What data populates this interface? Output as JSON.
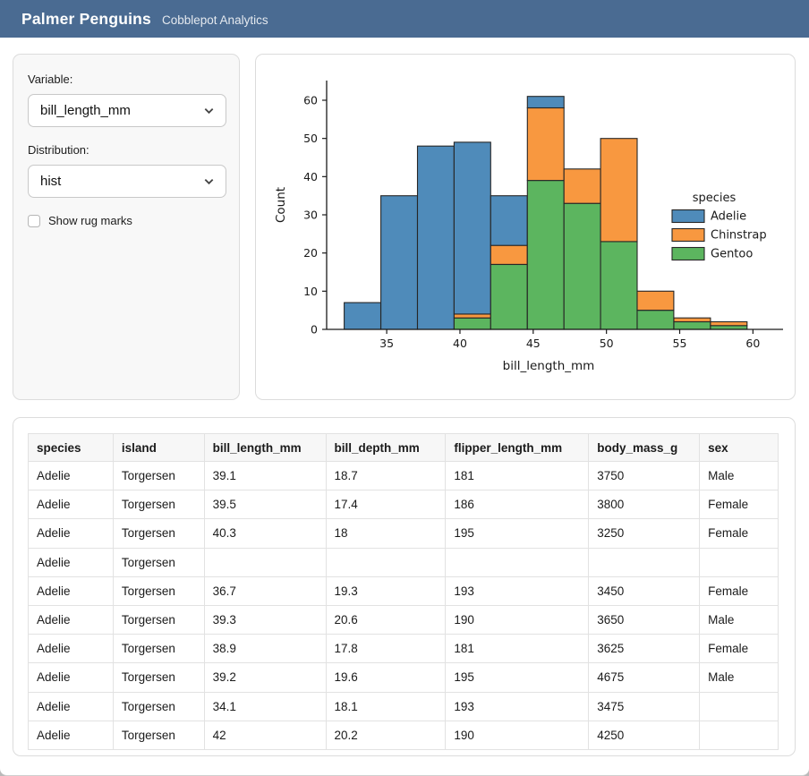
{
  "header": {
    "title": "Palmer Penguins",
    "subtitle": "Cobblepot Analytics"
  },
  "sidebar": {
    "variable_label": "Variable:",
    "variable_value": "bill_length_mm",
    "distribution_label": "Distribution:",
    "distribution_value": "hist",
    "rug_checkbox_label": "Show rug marks",
    "rug_checked": false
  },
  "chart_data": {
    "type": "bar",
    "subtype": "stacked-histogram",
    "title": "",
    "xlabel": "bill_length_mm",
    "ylabel": "Count",
    "legend_title": "species",
    "legend_position": "center-right",
    "grid": false,
    "bin_edges": [
      32.1,
      34.6,
      37.1,
      39.6,
      42.1,
      44.6,
      47.1,
      49.6,
      52.1,
      54.6,
      57.1,
      59.6
    ],
    "series": [
      {
        "name": "Adelie",
        "color": "#4f8bba",
        "values": [
          7,
          35,
          48,
          45,
          13,
          3,
          0,
          0,
          0,
          0,
          0
        ]
      },
      {
        "name": "Chinstrap",
        "color": "#f89840",
        "values": [
          0,
          0,
          0,
          1,
          5,
          19,
          9,
          27,
          5,
          1,
          1
        ]
      },
      {
        "name": "Gentoo",
        "color": "#5cb55f",
        "values": [
          0,
          0,
          0,
          3,
          17,
          39,
          33,
          23,
          5,
          2,
          1
        ]
      }
    ],
    "stack_order_bottom_to_top": [
      "Gentoo",
      "Chinstrap",
      "Adelie"
    ],
    "bin_totals": [
      7,
      35,
      48,
      49,
      35,
      61,
      42,
      50,
      10,
      3,
      2
    ],
    "xticks": [
      35,
      40,
      45,
      50,
      55,
      60
    ],
    "yticks": [
      0,
      10,
      20,
      30,
      40,
      50,
      60
    ],
    "xlim": [
      30.9,
      61.2
    ],
    "ylim": [
      0,
      64
    ],
    "bar_edge_color": "#262626"
  },
  "table": {
    "columns": [
      "species",
      "island",
      "bill_length_mm",
      "bill_depth_mm",
      "flipper_length_mm",
      "body_mass_g",
      "sex"
    ],
    "rows": [
      [
        "Adelie",
        "Torgersen",
        "39.1",
        "18.7",
        "181",
        "3750",
        "Male"
      ],
      [
        "Adelie",
        "Torgersen",
        "39.5",
        "17.4",
        "186",
        "3800",
        "Female"
      ],
      [
        "Adelie",
        "Torgersen",
        "40.3",
        "18",
        "195",
        "3250",
        "Female"
      ],
      [
        "Adelie",
        "Torgersen",
        "",
        "",
        "",
        "",
        ""
      ],
      [
        "Adelie",
        "Torgersen",
        "36.7",
        "19.3",
        "193",
        "3450",
        "Female"
      ],
      [
        "Adelie",
        "Torgersen",
        "39.3",
        "20.6",
        "190",
        "3650",
        "Male"
      ],
      [
        "Adelie",
        "Torgersen",
        "38.9",
        "17.8",
        "181",
        "3625",
        "Female"
      ],
      [
        "Adelie",
        "Torgersen",
        "39.2",
        "19.6",
        "195",
        "4675",
        "Male"
      ],
      [
        "Adelie",
        "Torgersen",
        "34.1",
        "18.1",
        "193",
        "3475",
        ""
      ],
      [
        "Adelie",
        "Torgersen",
        "42",
        "20.2",
        "190",
        "4250",
        ""
      ]
    ]
  }
}
